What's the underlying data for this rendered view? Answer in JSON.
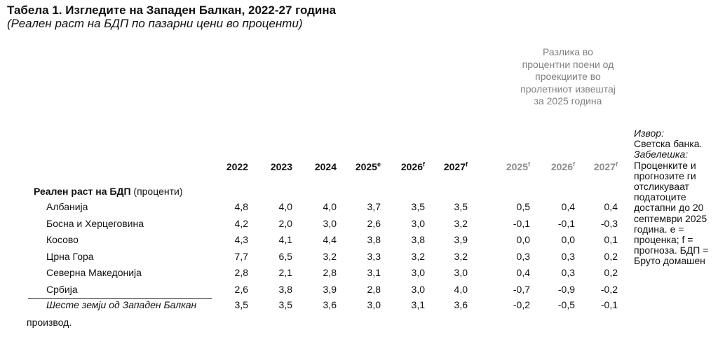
{
  "title": "Табела 1. Изгледите на Западен Балкан, 2022-27 година",
  "subtitle": "(Реален раст на БДП по пазарни цени во проценти)",
  "diff_header": "Разлика во процентни поени од проекциите во пролетниот извештај за 2025 година",
  "years": [
    {
      "year": "2022",
      "sup": ""
    },
    {
      "year": "2023",
      "sup": ""
    },
    {
      "year": "2024",
      "sup": ""
    },
    {
      "year": "2025",
      "sup": "e"
    },
    {
      "year": "2026",
      "sup": "f"
    },
    {
      "year": "2027",
      "sup": "f"
    }
  ],
  "diff_years": [
    {
      "year": "2025",
      "sup": "f"
    },
    {
      "year": "2026",
      "sup": "f"
    },
    {
      "year": "2027",
      "sup": "f"
    }
  ],
  "section": {
    "bold": "Реален раст на БДП",
    "rest": " (проценти)"
  },
  "rows": [
    {
      "label": "Албанија",
      "values": [
        "4,8",
        "4,0",
        "4,0",
        "3,7",
        "3,5",
        "3,5"
      ],
      "diffs": [
        "0,5",
        "0,4",
        "0,4"
      ]
    },
    {
      "label": "Босна и Херцеговина",
      "values": [
        "4,2",
        "2,0",
        "3,0",
        "2,6",
        "3,0",
        "3,2"
      ],
      "diffs": [
        "-0,1",
        "-0,1",
        "-0,3"
      ]
    },
    {
      "label": "Косово",
      "values": [
        "4,3",
        "4,1",
        "4,4",
        "3,8",
        "3,8",
        "3,9"
      ],
      "diffs": [
        "0,0",
        "0,0",
        "0,1"
      ]
    },
    {
      "label": "Црна Гора",
      "values": [
        "7,7",
        "6,5",
        "3,2",
        "3,3",
        "3,2",
        "3,2"
      ],
      "diffs": [
        "0,3",
        "0,3",
        "0,2"
      ]
    },
    {
      "label": "Северна Македонија",
      "values": [
        "2,8",
        "2,1",
        "2,8",
        "3,1",
        "3,0",
        "3,0"
      ],
      "diffs": [
        "0,4",
        "0,3",
        "0,2"
      ]
    },
    {
      "label": "Србија",
      "values": [
        "2,6",
        "3,8",
        "3,9",
        "2,8",
        "3,0",
        "4,0"
      ],
      "diffs": [
        "-0,7",
        "-0,9",
        "-0,2"
      ]
    }
  ],
  "summary": {
    "label": "Шесте земји од Западен Балкан",
    "values": [
      "3,5",
      "3,5",
      "3,6",
      "3,0",
      "3,1",
      "3,6"
    ],
    "diffs": [
      "-0,2",
      "-0,5",
      "-0,1"
    ]
  },
  "note": {
    "source_label": "Извор:",
    "source_text": "Светска банка.",
    "note_label": "Забелешка:",
    "note_text": "Проценките и прогнозите ги отсликуваат податоците достапни до 20 септември 2025 година. e = проценка; f = прогноза. БДП = Бруто домашен"
  },
  "footer_tail": "производ."
}
